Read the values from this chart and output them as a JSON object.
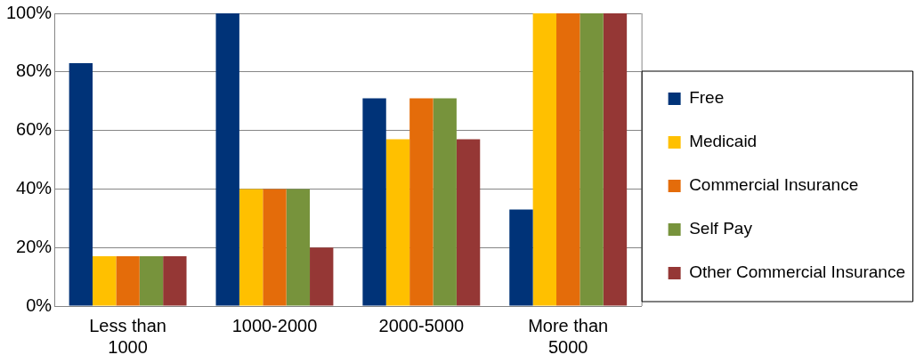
{
  "chart_data": {
    "type": "bar",
    "categories": [
      "Less than 1000",
      "1000-2000",
      "2000-5000",
      "More than 5000"
    ],
    "series": [
      {
        "name": "Free",
        "color": "#003378",
        "values": [
          83,
          100,
          71,
          33
        ]
      },
      {
        "name": "Medicaid",
        "color": "#ffc000",
        "values": [
          17,
          40,
          57,
          100
        ]
      },
      {
        "name": "Commercial Insurance",
        "color": "#e46c0a",
        "values": [
          17,
          40,
          71,
          100
        ]
      },
      {
        "name": "Self Pay",
        "color": "#77933c",
        "values": [
          17,
          40,
          71,
          100
        ]
      },
      {
        "name": "Other Commercial Insurance",
        "color": "#953735",
        "values": [
          17,
          20,
          57,
          100
        ]
      }
    ],
    "ylim": [
      0,
      100
    ],
    "yticks": [
      {
        "value": 0,
        "label": "0%"
      },
      {
        "value": 20,
        "label": "20%"
      },
      {
        "value": 40,
        "label": "40%"
      },
      {
        "value": 60,
        "label": "60%"
      },
      {
        "value": 80,
        "label": "80%"
      },
      {
        "value": 100,
        "label": "100%"
      }
    ],
    "grid": "y",
    "legend": "right"
  }
}
